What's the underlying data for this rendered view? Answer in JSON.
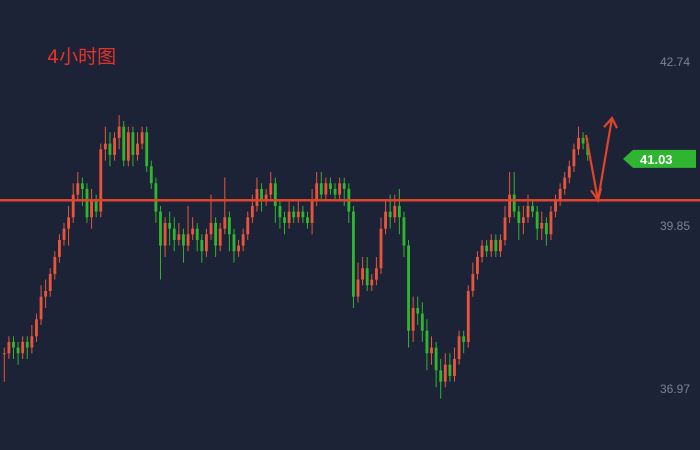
{
  "chart_data": {
    "type": "candlestick",
    "title": "4小时图",
    "current_price_label": "41.03",
    "current_price": 41.03,
    "ylim": [
      36.0,
      43.5
    ],
    "y_ticks": [
      {
        "value": 42.74,
        "label": "42.74"
      },
      {
        "value": 39.85,
        "label": "39.85"
      },
      {
        "value": 36.97,
        "label": "36.97"
      }
    ],
    "support_level": 40.3,
    "grid": false,
    "colors": {
      "background": "#1c2336",
      "up": "#e8553e",
      "down": "#2fb52f",
      "support_line": "#e0442a",
      "arrow": "#e0442a",
      "title": "#e8312a",
      "badge": "#2fb52f",
      "tick_text": "#7c8291"
    },
    "candles": [
      [
        37.6,
        37.6,
        37.7,
        37.1
      ],
      [
        37.6,
        37.8,
        37.9,
        37.5
      ],
      [
        37.8,
        37.7,
        37.9,
        37.5
      ],
      [
        37.7,
        37.6,
        37.8,
        37.4
      ],
      [
        37.6,
        37.8,
        37.9,
        37.5
      ],
      [
        37.8,
        37.7,
        37.9,
        37.5
      ],
      [
        37.7,
        37.9,
        38.1,
        37.6
      ],
      [
        37.9,
        38.2,
        38.3,
        37.8
      ],
      [
        38.2,
        38.6,
        38.8,
        38.1
      ],
      [
        38.6,
        38.7,
        38.9,
        38.4
      ],
      [
        38.7,
        39.0,
        39.1,
        38.6
      ],
      [
        39.0,
        39.3,
        39.4,
        38.9
      ],
      [
        39.3,
        39.6,
        39.7,
        39.2
      ],
      [
        39.6,
        39.8,
        39.9,
        39.5
      ],
      [
        39.8,
        40.0,
        40.2,
        39.5
      ],
      [
        40.0,
        40.4,
        40.6,
        39.9
      ],
      [
        40.4,
        40.6,
        40.8,
        40.3
      ],
      [
        40.6,
        40.5,
        40.7,
        40.2
      ],
      [
        40.5,
        40.0,
        40.6,
        39.9
      ],
      [
        40.0,
        40.3,
        40.5,
        39.8
      ],
      [
        40.3,
        40.1,
        40.4,
        40.0
      ],
      [
        40.1,
        41.2,
        41.3,
        40.0
      ],
      [
        41.2,
        41.3,
        41.6,
        41.0
      ],
      [
        41.3,
        41.1,
        41.5,
        40.9
      ],
      [
        41.1,
        41.4,
        41.5,
        41.0
      ],
      [
        41.4,
        41.6,
        41.8,
        41.2
      ],
      [
        41.6,
        41.0,
        41.7,
        40.9
      ],
      [
        41.0,
        41.5,
        41.6,
        40.9
      ],
      [
        41.5,
        41.1,
        41.6,
        40.9
      ],
      [
        41.1,
        41.3,
        41.5,
        41.0
      ],
      [
        41.3,
        41.5,
        41.6,
        41.2
      ],
      [
        41.5,
        40.9,
        41.6,
        40.8
      ],
      [
        40.9,
        40.6,
        41.0,
        40.5
      ],
      [
        40.6,
        40.1,
        40.7,
        39.9
      ],
      [
        40.1,
        39.5,
        40.2,
        38.9
      ],
      [
        39.5,
        39.9,
        40.0,
        39.3
      ],
      [
        39.9,
        39.8,
        40.1,
        39.5
      ],
      [
        39.8,
        39.6,
        40.0,
        39.4
      ],
      [
        39.6,
        39.7,
        39.9,
        39.5
      ],
      [
        39.7,
        39.5,
        39.8,
        39.2
      ],
      [
        39.5,
        39.7,
        40.2,
        39.4
      ],
      [
        39.7,
        39.8,
        40.0,
        39.6
      ],
      [
        39.8,
        39.6,
        39.9,
        39.4
      ],
      [
        39.6,
        39.4,
        39.7,
        39.2
      ],
      [
        39.4,
        39.7,
        39.8,
        39.3
      ],
      [
        39.7,
        39.9,
        40.4,
        39.6
      ],
      [
        39.9,
        39.5,
        40.0,
        39.3
      ],
      [
        39.5,
        39.8,
        39.9,
        39.4
      ],
      [
        39.8,
        40.0,
        40.7,
        39.7
      ],
      [
        40.0,
        39.7,
        40.1,
        39.4
      ],
      [
        39.7,
        39.4,
        39.8,
        39.2
      ],
      [
        39.4,
        39.5,
        39.6,
        39.3
      ],
      [
        39.5,
        39.7,
        39.8,
        39.4
      ],
      [
        39.7,
        40.0,
        40.1,
        39.6
      ],
      [
        40.0,
        40.2,
        40.4,
        39.9
      ],
      [
        40.2,
        40.5,
        40.7,
        40.1
      ],
      [
        40.5,
        40.3,
        40.6,
        40.1
      ],
      [
        40.3,
        40.4,
        40.5,
        40.2
      ],
      [
        40.4,
        40.6,
        40.8,
        40.3
      ],
      [
        40.6,
        40.2,
        40.7,
        39.9
      ],
      [
        40.2,
        40.0,
        40.3,
        39.8
      ],
      [
        40.0,
        39.9,
        40.1,
        39.7
      ],
      [
        39.9,
        40.1,
        40.3,
        39.8
      ],
      [
        40.1,
        40.0,
        40.2,
        39.9
      ],
      [
        40.0,
        40.1,
        40.3,
        39.9
      ],
      [
        40.1,
        40.0,
        40.2,
        39.9
      ],
      [
        40.0,
        39.9,
        40.1,
        39.8
      ],
      [
        39.9,
        40.3,
        40.5,
        39.7
      ],
      [
        40.3,
        40.6,
        40.8,
        40.2
      ],
      [
        40.6,
        40.4,
        40.8,
        40.3
      ],
      [
        40.4,
        40.6,
        40.7,
        40.3
      ],
      [
        40.6,
        40.5,
        40.7,
        40.4
      ],
      [
        40.5,
        40.4,
        40.6,
        40.3
      ],
      [
        40.4,
        40.6,
        40.7,
        40.3
      ],
      [
        40.6,
        40.5,
        40.7,
        40.2
      ],
      [
        40.5,
        40.1,
        40.6,
        39.9
      ],
      [
        40.1,
        38.6,
        40.2,
        38.4
      ],
      [
        38.6,
        38.9,
        39.2,
        38.5
      ],
      [
        38.9,
        39.1,
        39.3,
        38.8
      ],
      [
        39.1,
        38.8,
        39.3,
        38.7
      ],
      [
        38.8,
        38.9,
        39.0,
        38.7
      ],
      [
        38.9,
        39.1,
        39.3,
        38.8
      ],
      [
        39.1,
        39.8,
        40.0,
        39.0
      ],
      [
        39.8,
        40.1,
        40.3,
        39.7
      ],
      [
        40.1,
        40.0,
        40.4,
        39.8
      ],
      [
        40.0,
        40.2,
        40.4,
        39.9
      ],
      [
        40.2,
        40.0,
        40.5,
        39.7
      ],
      [
        40.0,
        39.5,
        40.1,
        39.3
      ],
      [
        39.5,
        38.0,
        39.6,
        37.7
      ],
      [
        38.0,
        38.4,
        38.6,
        37.8
      ],
      [
        38.4,
        38.3,
        38.6,
        38.1
      ],
      [
        38.3,
        38.0,
        38.5,
        37.8
      ],
      [
        38.0,
        37.6,
        38.2,
        37.3
      ],
      [
        37.6,
        37.7,
        37.9,
        37.4
      ],
      [
        37.7,
        37.3,
        37.8,
        37.0
      ],
      [
        37.3,
        37.1,
        37.5,
        36.8
      ],
      [
        37.1,
        37.4,
        37.6,
        37.0
      ],
      [
        37.4,
        37.2,
        37.6,
        37.1
      ],
      [
        37.2,
        37.5,
        37.7,
        37.1
      ],
      [
        37.5,
        37.9,
        38.0,
        37.4
      ],
      [
        37.9,
        37.8,
        38.0,
        37.6
      ],
      [
        37.8,
        38.7,
        38.8,
        37.7
      ],
      [
        38.7,
        39.0,
        39.2,
        38.6
      ],
      [
        39.0,
        39.3,
        39.4,
        38.9
      ],
      [
        39.3,
        39.5,
        39.6,
        39.2
      ],
      [
        39.5,
        39.4,
        39.6,
        39.3
      ],
      [
        39.4,
        39.6,
        39.7,
        39.3
      ],
      [
        39.6,
        39.4,
        39.7,
        39.3
      ],
      [
        39.4,
        39.6,
        39.7,
        39.3
      ],
      [
        39.6,
        40.0,
        40.2,
        39.5
      ],
      [
        40.0,
        40.4,
        40.8,
        39.9
      ],
      [
        40.4,
        40.1,
        40.8,
        40.0
      ],
      [
        40.1,
        39.9,
        40.2,
        39.6
      ],
      [
        39.9,
        40.0,
        40.2,
        39.7
      ],
      [
        40.0,
        40.2,
        40.4,
        39.9
      ],
      [
        40.2,
        40.1,
        40.3,
        40.0
      ],
      [
        40.1,
        39.8,
        40.2,
        39.6
      ],
      [
        39.8,
        39.9,
        40.1,
        39.6
      ],
      [
        39.9,
        39.7,
        40.0,
        39.5
      ],
      [
        39.7,
        40.1,
        40.2,
        39.6
      ],
      [
        40.1,
        40.3,
        40.4,
        40.0
      ],
      [
        40.3,
        40.5,
        40.6,
        40.2
      ],
      [
        40.5,
        40.7,
        40.8,
        40.4
      ],
      [
        40.7,
        40.9,
        41.0,
        40.6
      ],
      [
        40.9,
        41.2,
        41.3,
        40.8
      ],
      [
        41.2,
        41.4,
        41.6,
        41.1
      ],
      [
        41.4,
        41.3,
        41.5,
        41.2
      ],
      [
        41.3,
        41.1,
        41.4,
        41.0
      ]
    ]
  }
}
